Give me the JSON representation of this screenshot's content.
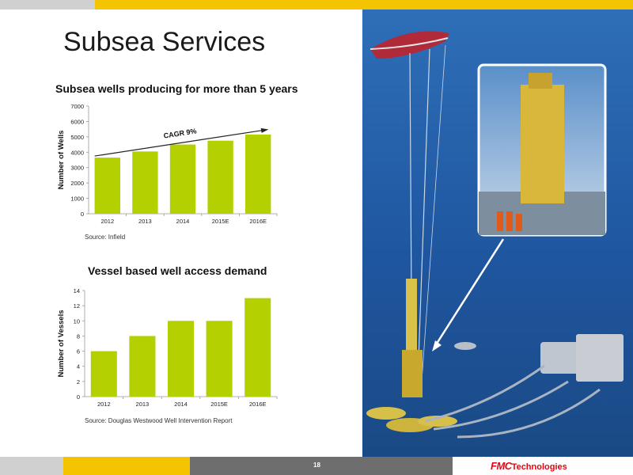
{
  "slide": {
    "title": "Subsea Services",
    "page_number": "18",
    "logo": {
      "brand": "FMC",
      "suffix": "Technologies"
    }
  },
  "colors": {
    "accent_yellow": "#f5c400",
    "bar_green": "#b5d000",
    "footer_gray": "#6e6e6e",
    "logo_red": "#e30613"
  },
  "chart_data": [
    {
      "type": "bar",
      "title": "Subsea wells producing for more than 5 years",
      "ylabel": "Number of Wells",
      "xlabel": "",
      "categories": [
        "2012",
        "2013",
        "2014",
        "2015E",
        "2016E"
      ],
      "values": [
        3650,
        4050,
        4500,
        4750,
        5150
      ],
      "ylim": [
        0,
        7000
      ],
      "yticks": [
        0,
        1000,
        2000,
        3000,
        4000,
        5000,
        6000,
        7000
      ],
      "annotation": "CAGR 9%",
      "source": "Source:  Infield",
      "grid": false
    },
    {
      "type": "bar",
      "title": "Vessel based well access demand",
      "ylabel": "Number of Vessels",
      "xlabel": "",
      "categories": [
        "2012",
        "2013",
        "2014",
        "2015E",
        "2016E"
      ],
      "values": [
        6,
        8,
        10,
        10,
        13
      ],
      "ylim": [
        0,
        14
      ],
      "yticks": [
        0,
        2,
        4,
        6,
        8,
        10,
        12,
        14
      ],
      "source": "Source:  Douglas Westwood Well Intervention Report",
      "grid": false
    }
  ]
}
